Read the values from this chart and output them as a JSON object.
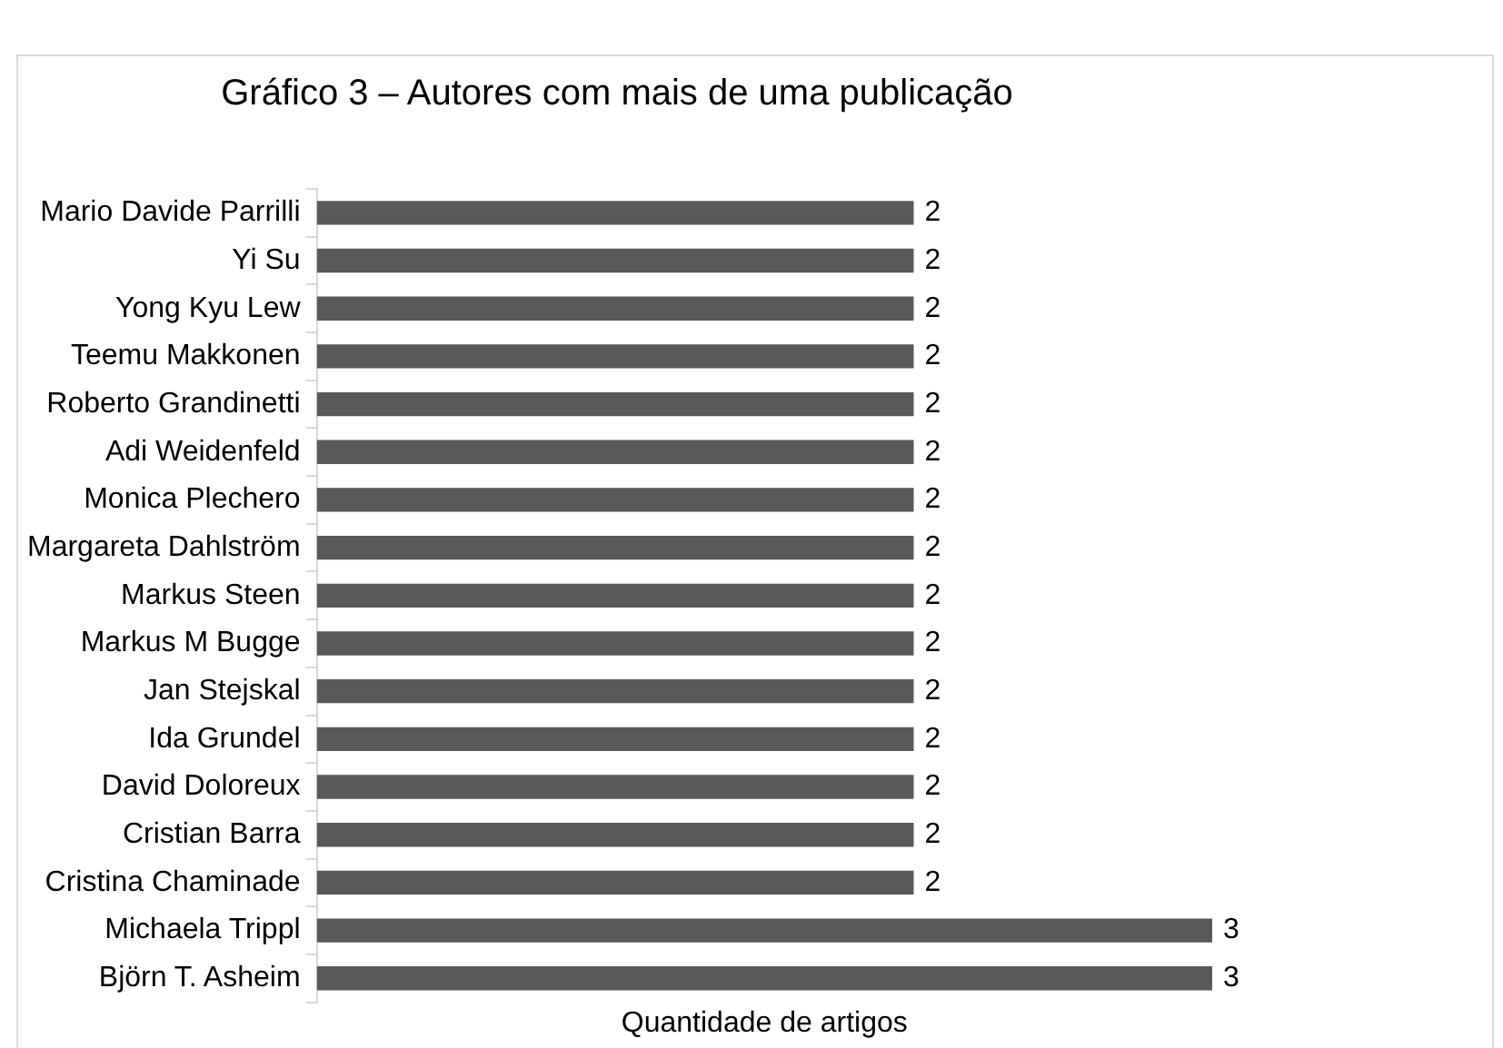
{
  "chart_data": {
    "type": "bar",
    "orientation": "horizontal",
    "title": "Gráfico 3 – Autores com mais de uma publicação",
    "xlabel": "Quantidade de artigos",
    "categories": [
      "Mario Davide Parrilli",
      "Yi Su",
      "Yong Kyu Lew",
      "Teemu Makkonen",
      "Roberto Grandinetti",
      "Adi Weidenfeld",
      "Monica Plechero",
      "Margareta Dahlström",
      "Markus Steen",
      "Markus M Bugge",
      "Jan Stejskal",
      "Ida Grundel",
      "David Doloreux",
      "Cristian Barra",
      "Cristina Chaminade",
      "Michaela Trippl",
      "Björn T. Asheim"
    ],
    "values": [
      2,
      2,
      2,
      2,
      2,
      2,
      2,
      2,
      2,
      2,
      2,
      2,
      2,
      2,
      2,
      3,
      3
    ],
    "color": "#595959",
    "data_labels": true,
    "grid": false,
    "legend": false,
    "tick_labels": "y"
  }
}
